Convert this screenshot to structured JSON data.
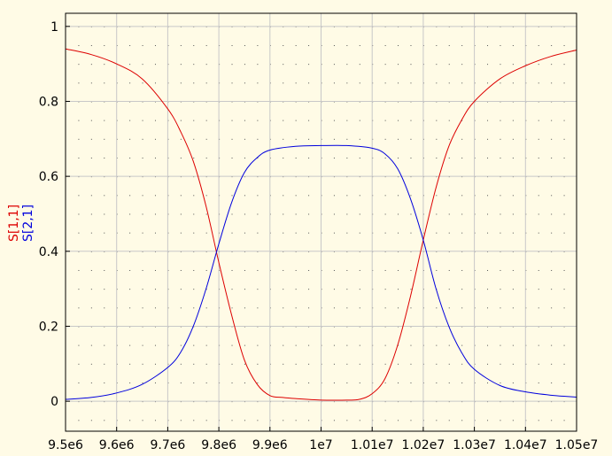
{
  "chart_data": {
    "type": "line",
    "title": "",
    "xlabel": "",
    "ylabel": "",
    "xlim": [
      9500000,
      10500000
    ],
    "ylim": [
      -0.08,
      1.035
    ],
    "x_ticks": [
      9500000,
      9600000,
      9700000,
      9800000,
      9900000,
      10000000,
      10100000,
      10200000,
      10300000,
      10400000,
      10500000
    ],
    "x_tick_labels": [
      "9.5e6",
      "9.6e6",
      "9.7e6",
      "9.8e6",
      "9.9e6",
      "1e7",
      "1.01e7",
      "1.02e7",
      "1.03e7",
      "1.04e7",
      "1.05e7"
    ],
    "y_ticks": [
      0,
      0.2,
      0.4,
      0.6,
      0.8,
      1
    ],
    "y_tick_labels": [
      "0",
      "0.2",
      "0.4",
      "0.6",
      "0.8",
      "1"
    ],
    "grid": true,
    "background": "#fffbe6",
    "series": [
      {
        "name": "S[1,1]",
        "color": "#dd0000",
        "x": [
          9500000,
          9550000,
          9600000,
          9650000,
          9700000,
          9725000,
          9750000,
          9775000,
          9800000,
          9825000,
          9850000,
          9875000,
          9900000,
          9925000,
          9950000,
          10000000,
          10050000,
          10075000,
          10100000,
          10125000,
          10150000,
          10175000,
          10200000,
          10225000,
          10250000,
          10275000,
          10300000,
          10350000,
          10400000,
          10450000,
          10500000
        ],
        "y": [
          0.94,
          0.925,
          0.9,
          0.86,
          0.78,
          0.72,
          0.64,
          0.52,
          0.37,
          0.23,
          0.11,
          0.045,
          0.015,
          0.01,
          0.007,
          0.003,
          0.003,
          0.005,
          0.02,
          0.06,
          0.15,
          0.28,
          0.43,
          0.57,
          0.68,
          0.75,
          0.8,
          0.86,
          0.895,
          0.92,
          0.937
        ]
      },
      {
        "name": "S[2,1]",
        "color": "#0000dd",
        "x": [
          9500000,
          9550000,
          9600000,
          9650000,
          9700000,
          9725000,
          9750000,
          9775000,
          9800000,
          9825000,
          9850000,
          9875000,
          9900000,
          9950000,
          10000000,
          10050000,
          10100000,
          10125000,
          10150000,
          10175000,
          10200000,
          10225000,
          10250000,
          10275000,
          10300000,
          10350000,
          10400000,
          10450000,
          10500000
        ],
        "y": [
          0.005,
          0.01,
          0.022,
          0.045,
          0.09,
          0.13,
          0.2,
          0.3,
          0.42,
          0.53,
          0.61,
          0.65,
          0.67,
          0.68,
          0.682,
          0.682,
          0.675,
          0.66,
          0.62,
          0.54,
          0.43,
          0.3,
          0.2,
          0.13,
          0.085,
          0.042,
          0.025,
          0.016,
          0.011
        ]
      }
    ]
  }
}
